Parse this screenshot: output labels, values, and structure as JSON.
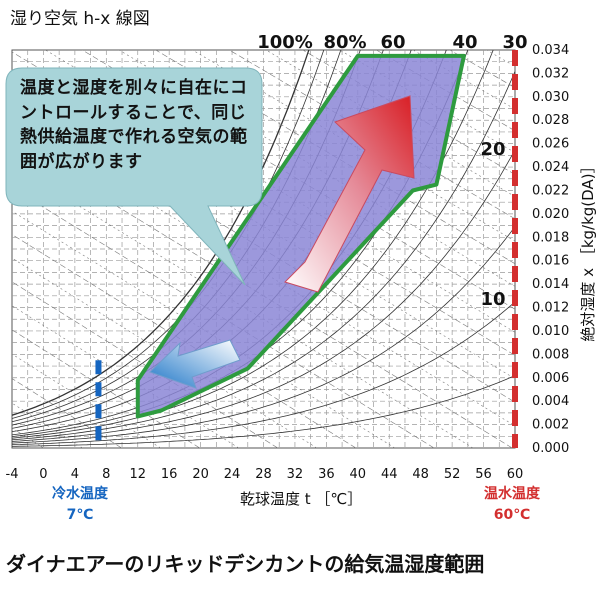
{
  "chart_data": {
    "type": "psychrometric",
    "title": "湿り空気 h-x 線図",
    "xlabel": "乾球温度 t ［℃］",
    "ylabel": "絶対湿度 x ［kg/kg(DA)］",
    "x_ticks": [
      -4,
      0,
      4,
      8,
      12,
      16,
      20,
      24,
      28,
      32,
      36,
      40,
      44,
      48,
      52,
      56,
      60
    ],
    "y_ticks": [
      "0.000",
      "0.002",
      "0.004",
      "0.006",
      "0.008",
      "0.010",
      "0.012",
      "0.014",
      "0.016",
      "0.018",
      "0.020",
      "0.022",
      "0.024",
      "0.026",
      "0.028",
      "0.030",
      "0.032",
      "0.034"
    ],
    "xlim": [
      -4,
      60
    ],
    "ylim": [
      0,
      0.034
    ],
    "rh_curve_labels": [
      "100%",
      "80%",
      "60",
      "40",
      "30"
    ],
    "enthalpy_labels": [
      "20",
      "10"
    ],
    "region_polygon": [
      [
        12,
        0.0027
      ],
      [
        12,
        0.0058
      ],
      [
        40,
        0.0335
      ],
      [
        53.5,
        0.0335
      ],
      [
        50,
        0.0225
      ],
      [
        47,
        0.022
      ],
      [
        26,
        0.0068
      ],
      [
        15,
        0.0032
      ]
    ],
    "cold_water": {
      "label": "冷水温度",
      "value": "7℃",
      "x": 7
    },
    "hot_water": {
      "label": "温水温度",
      "value": "60℃",
      "x": 60
    }
  },
  "bubble_text": "温度と湿度を別々に自在にコントロールすることで、同じ熱供給温度で作れる空気の範囲が広がります",
  "caption": "ダイナエアーのリキッドデシカントの給気温湿度範囲",
  "colors": {
    "region_fill": "#8b86d6",
    "region_border": "#2e9b3f",
    "cold": "#1565c0",
    "hot": "#d32f2f",
    "bubble": "#a8d4d9"
  }
}
